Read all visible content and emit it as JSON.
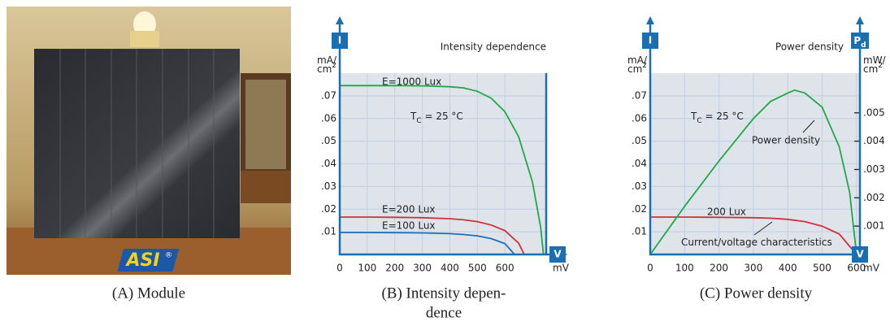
{
  "image_panel": {
    "logo": "ASI",
    "logo_mark": "®",
    "caption": [
      "(A) Module"
    ]
  },
  "chart_data": [
    {
      "type": "line",
      "title": "Intensity dependence",
      "caption": [
        "(B) Intensity depen-",
        "dence"
      ],
      "y_label": "I",
      "y_unit": {
        "text": "mA/",
        "base": "cm",
        "exp": "2"
      },
      "x_label": "V",
      "x_unit": "mV",
      "xlim": [
        0,
        750
      ],
      "ylim": [
        0,
        0.08
      ],
      "grid": true,
      "axis_color": "#1a6fb3",
      "xticks": [
        0,
        100,
        200,
        300,
        400,
        500,
        600
      ],
      "yticks": [
        {
          "value": 0.01,
          "label": ".01"
        },
        {
          "value": 0.02,
          "label": ".02"
        },
        {
          "value": 0.03,
          "label": ".03"
        },
        {
          "value": 0.04,
          "label": ".04"
        },
        {
          "value": 0.05,
          "label": ".05"
        },
        {
          "value": 0.06,
          "label": ".06"
        },
        {
          "value": 0.07,
          "label": ".07"
        }
      ],
      "series": [
        {
          "name": "E=1000 Lux",
          "color": "#1fa84a",
          "x": [
            0,
            100,
            200,
            300,
            400,
            450,
            500,
            550,
            600,
            650,
            700,
            730,
            740
          ],
          "values": [
            0.0745,
            0.0745,
            0.0745,
            0.0744,
            0.074,
            0.0735,
            0.072,
            0.069,
            0.063,
            0.052,
            0.032,
            0.012,
            0
          ]
        },
        {
          "name": "E=200 Lux",
          "color": "#d0313d",
          "x": [
            0,
            100,
            200,
            300,
            400,
            450,
            500,
            550,
            600,
            650,
            670
          ],
          "values": [
            0.0165,
            0.0165,
            0.0164,
            0.0162,
            0.0158,
            0.0153,
            0.0145,
            0.013,
            0.0105,
            0.005,
            0
          ]
        },
        {
          "name": "E=100 Lux",
          "color": "#1f6fb5",
          "x": [
            0,
            100,
            200,
            300,
            400,
            450,
            500,
            550,
            600,
            635
          ],
          "values": [
            0.0097,
            0.0097,
            0.0096,
            0.0095,
            0.0092,
            0.0088,
            0.0082,
            0.007,
            0.0048,
            0
          ]
        }
      ],
      "annotations": [
        {
          "symbol": "T",
          "subscript": "C",
          "text": " = 25 °C"
        }
      ]
    },
    {
      "type": "line",
      "title": "Power density",
      "caption": [
        "(C) Power density"
      ],
      "y_label": "I",
      "y_unit": {
        "text": "mA/",
        "base": "cm",
        "exp": "2"
      },
      "y2_label": {
        "text": "P",
        "subscript": "d"
      },
      "y2_unit": {
        "text": "mW/",
        "base": "cm",
        "exp": "2"
      },
      "x_label": "V",
      "x_unit": "mV",
      "xlim": [
        0,
        610
      ],
      "ylim": [
        0,
        0.08
      ],
      "y2lim": [
        0,
        0.0064
      ],
      "grid": true,
      "axis_color": "#1a6fb3",
      "xticks": [
        0,
        100,
        200,
        300,
        400,
        500,
        600
      ],
      "yticks": [
        {
          "value": 0.01,
          "label": ".01"
        },
        {
          "value": 0.02,
          "label": ".02"
        },
        {
          "value": 0.03,
          "label": ".03"
        },
        {
          "value": 0.04,
          "label": ".04"
        },
        {
          "value": 0.05,
          "label": ".05"
        },
        {
          "value": 0.06,
          "label": ".06"
        },
        {
          "value": 0.07,
          "label": ".07"
        }
      ],
      "y2ticks": [
        {
          "value": 0.001,
          "label": ".001"
        },
        {
          "value": 0.002,
          "label": ".002"
        },
        {
          "value": 0.003,
          "label": ".003"
        },
        {
          "value": 0.004,
          "label": ".004"
        },
        {
          "value": 0.005,
          "label": ".005"
        }
      ],
      "series": [
        {
          "name": "200 Lux",
          "color": "#d0313d",
          "x": [
            0,
            100,
            200,
            300,
            350,
            400,
            450,
            500,
            550,
            600
          ],
          "values": [
            0.0165,
            0.0165,
            0.0164,
            0.0162,
            0.016,
            0.0155,
            0.0145,
            0.0125,
            0.009,
            0
          ]
        },
        {
          "name": "Power density",
          "color": "#1fa84a",
          "axis": "y2",
          "x": [
            0,
            100,
            200,
            300,
            350,
            400,
            420,
            450,
            500,
            550,
            580,
            600
          ],
          "values": [
            0,
            0.0017,
            0.0033,
            0.0048,
            0.0054,
            0.0057,
            0.0058,
            0.0057,
            0.0052,
            0.0038,
            0.0022,
            0
          ]
        }
      ],
      "annotations": [
        {
          "symbol": "T",
          "subscript": "C",
          "text": " = 25 °C"
        },
        {
          "text": "Current/voltage characteristics"
        }
      ]
    }
  ]
}
